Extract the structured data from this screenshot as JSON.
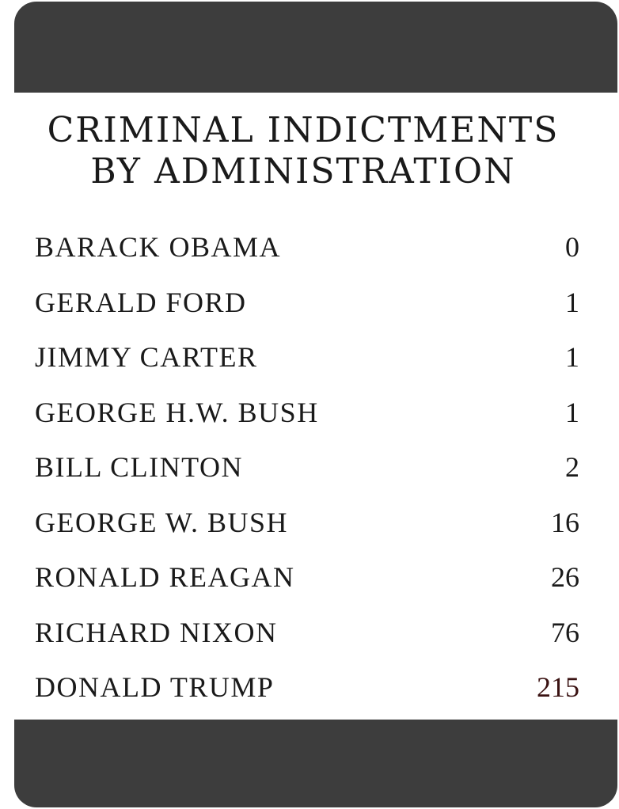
{
  "title": {
    "line1": "CRIMINAL INDICTMENTS",
    "line2": "BY ADMINISTRATION"
  },
  "rows": [
    {
      "name": "BARACK OBAMA",
      "count": "0"
    },
    {
      "name": "GERALD FORD",
      "count": "1"
    },
    {
      "name": "JIMMY CARTER",
      "count": "1"
    },
    {
      "name": "GEORGE H.W. BUSH",
      "count": "1"
    },
    {
      "name": "BILL CLINTON",
      "count": "2"
    },
    {
      "name": "GEORGE W. BUSH",
      "count": "16"
    },
    {
      "name": "RONALD REAGAN",
      "count": "26"
    },
    {
      "name": "RICHARD NIXON",
      "count": "76"
    },
    {
      "name": "DONALD TRUMP",
      "count": "215"
    }
  ],
  "colors": {
    "frame": "#3d3d3d",
    "card": "#ffffff",
    "text": "#1a1a1a",
    "highlight_count": "#3a1212"
  }
}
